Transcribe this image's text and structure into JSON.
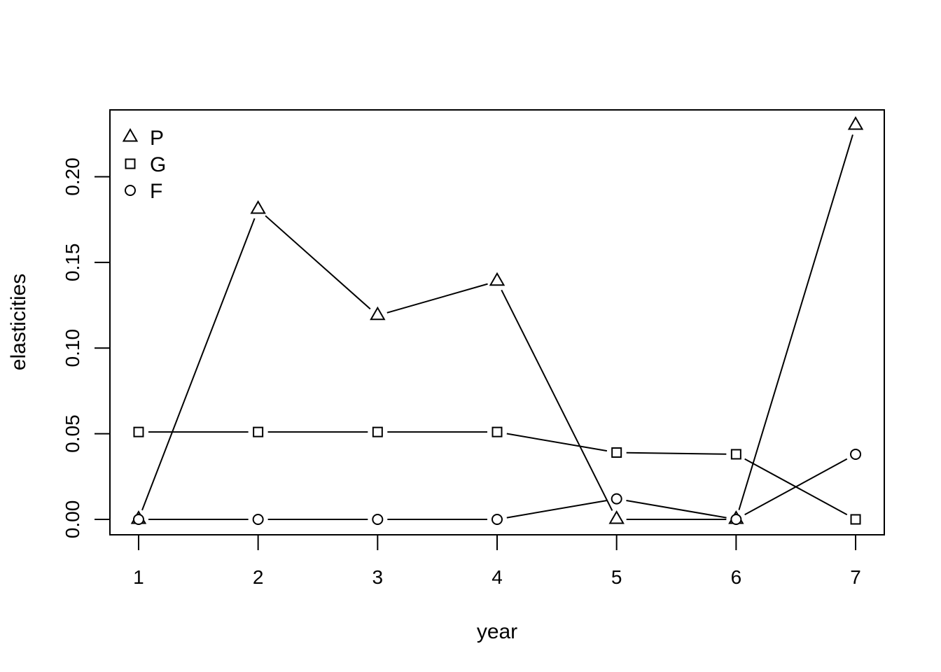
{
  "chart_data": {
    "type": "line",
    "xlabel": "year",
    "ylabel": "elasticities",
    "x": [
      1,
      2,
      3,
      4,
      5,
      6,
      7
    ],
    "xlim": [
      0.76,
      7.24
    ],
    "ylim": [
      -0.009,
      0.239
    ],
    "x_ticks": [
      1,
      2,
      3,
      4,
      5,
      6,
      7
    ],
    "y_ticks": [
      "0.00",
      "0.05",
      "0.10",
      "0.15",
      "0.20"
    ],
    "grid": false,
    "legend_position": "top-left",
    "series": [
      {
        "name": "P",
        "marker": "triangle",
        "values": [
          0.0,
          0.181,
          0.119,
          0.139,
          0.0,
          0.0,
          0.23
        ]
      },
      {
        "name": "G",
        "marker": "square",
        "values": [
          0.051,
          0.051,
          0.051,
          0.051,
          0.039,
          0.038,
          0.0
        ]
      },
      {
        "name": "F",
        "marker": "circle",
        "values": [
          0.0,
          0.0,
          0.0,
          0.0,
          0.012,
          0.0,
          0.038
        ]
      }
    ],
    "color": "#000000"
  }
}
